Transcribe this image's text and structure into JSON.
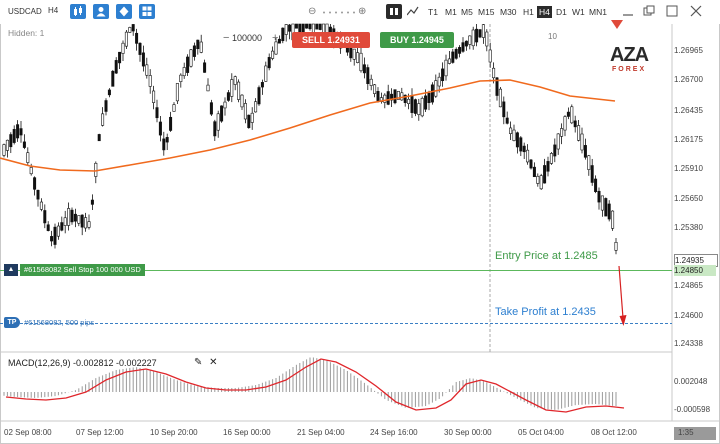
{
  "toolbar": {
    "symbol": "USDCAD",
    "period_button": "H4",
    "zoom_out": "⊖",
    "zoom_in": "⊕",
    "timeframes": [
      "T1",
      "M1",
      "M5",
      "M15",
      "M30",
      "H1",
      "H4",
      "D1",
      "W1",
      "MN1"
    ],
    "selected_timeframe": "H4"
  },
  "overlay": {
    "hidden_label": "Hidden: 1",
    "lots_value": "100000",
    "ten_label": "10",
    "sell_label": "SELL",
    "sell_price": "1.24931",
    "buy_label": "BUY",
    "buy_price": "1.24945"
  },
  "logo": {
    "text_top": "AZA",
    "text_bottom": "FOREX"
  },
  "price_axis": [
    "1.26965",
    "1.26700",
    "1.26435",
    "1.26175",
    "1.25910",
    "1.25650",
    "1.25380",
    "1.24935",
    "1.24850",
    "1.24865",
    "1.24600",
    "1.24338"
  ],
  "macd_axis": [
    "0.002048",
    "-0.000598"
  ],
  "date_axis": [
    "02 Sep 08:00",
    "07 Sep 12:00",
    "10 Sep 20:00",
    "16 Sep 00:00",
    "21 Sep 04:00",
    "24 Sep 16:00",
    "30 Sep 00:00",
    "05 Oct 04:00",
    "08 Oct 12:00"
  ],
  "orders": {
    "pending_tag": "#61568082 Sell Stop 100 000 USD",
    "tp_tag": "#61568082, 500 pips",
    "tp_icon": "TP",
    "entry_text": "Entry Price at 1.2485",
    "tp_text": "Take Profit at 1.2435"
  },
  "macd": {
    "label": "MACD(12,26,9) -0.002812 -0.002227"
  },
  "scrollbar": {
    "label": "1:35"
  },
  "colors": {
    "sell": "#e04a3a",
    "buy": "#3f9a48",
    "ma_line": "#f06a1e",
    "signal_line": "#e0262b",
    "accent": "#2d7fd0"
  }
}
